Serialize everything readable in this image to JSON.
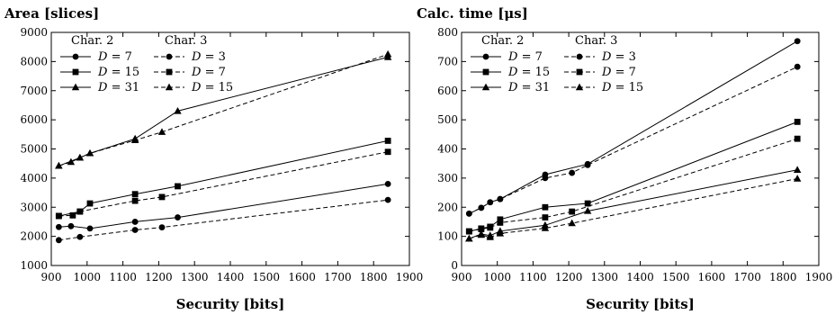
{
  "chart_data": [
    {
      "type": "line",
      "title": "Area [slices]",
      "xlabel": "Security [bits]",
      "ylabel": "",
      "xlim": [
        900,
        1900
      ],
      "ylim": [
        1000,
        9000
      ],
      "xticks": [
        900,
        1000,
        1100,
        1200,
        1300,
        1400,
        1500,
        1600,
        1700,
        1800,
        1900
      ],
      "yticks": [
        1000,
        2000,
        3000,
        4000,
        5000,
        6000,
        7000,
        8000,
        9000
      ],
      "legend_position": "top-left",
      "legend_groups": [
        "Char. 2",
        "Char. 3"
      ],
      "series": [
        {
          "name": "D = 7",
          "group": "Char. 2",
          "marker": "circle",
          "dash": "solid",
          "x": [
            921,
            955,
            1008,
            1134,
            1253,
            1840
          ],
          "y": [
            2320,
            2350,
            2270,
            2500,
            2650,
            3800
          ]
        },
        {
          "name": "D = 15",
          "group": "Char. 2",
          "marker": "square",
          "dash": "solid",
          "x": [
            921,
            980,
            1008,
            1134,
            1253,
            1840
          ],
          "y": [
            2700,
            2850,
            3130,
            3450,
            3720,
            5280
          ]
        },
        {
          "name": "D = 31",
          "group": "Char. 2",
          "marker": "triangle",
          "dash": "solid",
          "x": [
            921,
            980,
            1008,
            1134,
            1253,
            1840
          ],
          "y": [
            4420,
            4700,
            4850,
            5350,
            6300,
            8150
          ]
        },
        {
          "name": "D = 3",
          "group": "Char. 3",
          "marker": "circle",
          "dash": "dashed",
          "x": [
            921,
            980,
            1134,
            1209,
            1840
          ],
          "y": [
            1870,
            1980,
            2220,
            2310,
            3250
          ]
        },
        {
          "name": "D = 7",
          "group": "Char. 3",
          "marker": "square",
          "dash": "dashed",
          "x": [
            921,
            960,
            980,
            1134,
            1209,
            1840
          ],
          "y": [
            2700,
            2720,
            2850,
            3220,
            3350,
            4900
          ]
        },
        {
          "name": "D = 15",
          "group": "Char. 3",
          "marker": "triangle",
          "dash": "dashed",
          "x": [
            921,
            955,
            980,
            1008,
            1134,
            1209,
            1840
          ],
          "y": [
            4420,
            4550,
            4700,
            4850,
            5300,
            5580,
            8250
          ]
        }
      ]
    },
    {
      "type": "line",
      "title": "Calc. time [μs]",
      "xlabel": "Security [bits]",
      "ylabel": "",
      "xlim": [
        900,
        1900
      ],
      "ylim": [
        0,
        800
      ],
      "xticks": [
        900,
        1000,
        1100,
        1200,
        1300,
        1400,
        1500,
        1600,
        1700,
        1800,
        1900
      ],
      "yticks": [
        0,
        100,
        200,
        300,
        400,
        500,
        600,
        700,
        800
      ],
      "legend_position": "top-left",
      "legend_groups": [
        "Char. 2",
        "Char. 3"
      ],
      "series": [
        {
          "name": "D = 7",
          "group": "Char. 2",
          "marker": "circle",
          "dash": "solid",
          "x": [
            921,
            955,
            980,
            1008,
            1134,
            1253,
            1840
          ],
          "y": [
            178,
            198,
            217,
            228,
            312,
            348,
            770
          ]
        },
        {
          "name": "D = 15",
          "group": "Char. 2",
          "marker": "square",
          "dash": "solid",
          "x": [
            921,
            955,
            980,
            1008,
            1134,
            1253,
            1840
          ],
          "y": [
            117,
            127,
            133,
            158,
            200,
            213,
            493
          ]
        },
        {
          "name": "D = 31",
          "group": "Char. 2",
          "marker": "triangle",
          "dash": "solid",
          "x": [
            921,
            955,
            980,
            1008,
            1134,
            1253,
            1840
          ],
          "y": [
            92,
            108,
            103,
            118,
            138,
            187,
            328
          ]
        },
        {
          "name": "D = 3",
          "group": "Char. 3",
          "marker": "circle",
          "dash": "dashed",
          "x": [
            921,
            955,
            980,
            1008,
            1134,
            1209,
            1253,
            1840
          ],
          "y": [
            178,
            198,
            217,
            228,
            300,
            318,
            345,
            682
          ]
        },
        {
          "name": "D = 7",
          "group": "Char. 3",
          "marker": "square",
          "dash": "dashed",
          "x": [
            921,
            955,
            980,
            1008,
            1134,
            1209,
            1840
          ],
          "y": [
            117,
            125,
            130,
            147,
            165,
            185,
            435
          ]
        },
        {
          "name": "D = 15",
          "group": "Char. 3",
          "marker": "triangle",
          "dash": "dashed",
          "x": [
            921,
            955,
            980,
            1008,
            1134,
            1209,
            1840
          ],
          "y": [
            92,
            105,
            97,
            110,
            128,
            145,
            298
          ]
        }
      ]
    }
  ]
}
